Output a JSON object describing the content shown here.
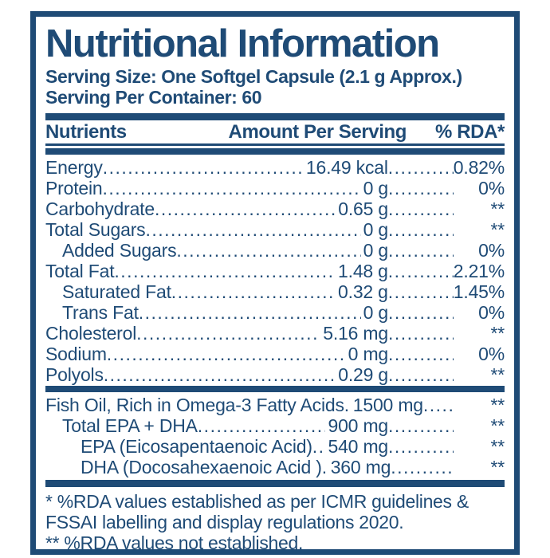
{
  "colors": {
    "primary": "#1F4B76",
    "background": "#FFFFFF"
  },
  "label": {
    "title": "Nutritional Information",
    "serving_size": "Serving Size: One Softgel Capsule (2.1 g Approx.)",
    "serving_per_container": "Serving Per Container: 60",
    "columns": {
      "nutrients": "Nutrients",
      "amount": "Amount Per Serving",
      "rda": "% RDA*"
    },
    "rows": [
      {
        "name": "Energy",
        "amount": "16.49 kcal",
        "rda": "0.82%",
        "indent": 0
      },
      {
        "name": "Protein",
        "amount": "0 g",
        "rda": "0%",
        "indent": 0
      },
      {
        "name": "Carbohydrate",
        "amount": "0.65 g",
        "rda": "**",
        "indent": 0
      },
      {
        "name": "Total Sugars",
        "amount": "0 g",
        "rda": "**",
        "indent": 0
      },
      {
        "name": "Added Sugars",
        "amount": "0 g",
        "rda": "0%",
        "indent": 1
      },
      {
        "name": "Total Fat",
        "amount": "1.48 g",
        "rda": "2.21%",
        "indent": 0
      },
      {
        "name": "Saturated Fat",
        "amount": "0.32 g",
        "rda": "1.45%",
        "indent": 1
      },
      {
        "name": "Trans Fat",
        "amount": "0 g",
        "rda": "0%",
        "indent": 1
      },
      {
        "name": "Cholesterol",
        "amount": "5.16 mg",
        "rda": "**",
        "indent": 0
      },
      {
        "name": "Sodium",
        "amount": "0 mg",
        "rda": "0%",
        "indent": 0
      },
      {
        "name": "Polyols",
        "amount": "0.29 g",
        "rda": "**",
        "indent": 0
      }
    ],
    "omega_rows": [
      {
        "name": "Fish Oil, Rich in Omega-3 Fatty Acids",
        "amount": "1500 mg",
        "rda": "**",
        "indent": 0
      },
      {
        "name": "Total EPA + DHA",
        "amount": "900 mg",
        "rda": "**",
        "indent": 1
      },
      {
        "name": "EPA (Eicosapentaenoic Acid)",
        "amount": "540 mg",
        "rda": "**",
        "indent": 2
      },
      {
        "name": "DHA (Docosahexaenoic Acid )",
        "amount": "360 mg",
        "rda": "**",
        "indent": 2
      }
    ],
    "footnotes": {
      "rda_established": "* %RDA values established as per ICMR guidelines & FSSAI labelling and display regulations 2020.",
      "rda_not_established": "** %RDA values not established."
    }
  }
}
